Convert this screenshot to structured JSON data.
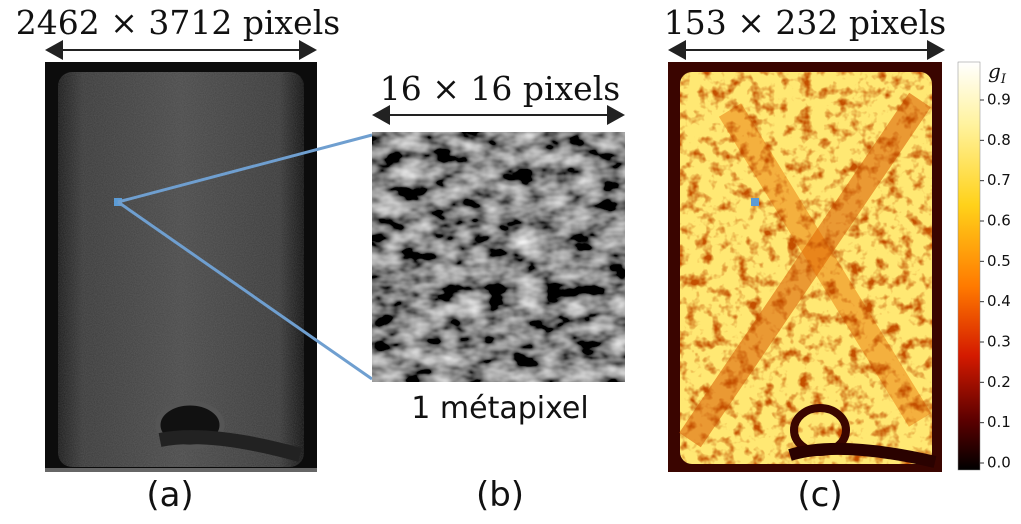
{
  "panels": [
    {
      "dimension": "2462 × 3712 pixels",
      "caption": "(a)"
    },
    {
      "dimension": "16 × 16 pixels",
      "caption": "(b)",
      "note": "1 métapixel"
    },
    {
      "dimension": "153 × 232 pixels",
      "caption": "(c)"
    }
  ],
  "colorbar": {
    "label": "g",
    "label_subscript": "I",
    "ticks": [
      "0.9",
      "0.8",
      "0.7",
      "0.6",
      "0.5",
      "0.4",
      "0.3",
      "0.2",
      "0.1",
      "0.0"
    ]
  }
}
